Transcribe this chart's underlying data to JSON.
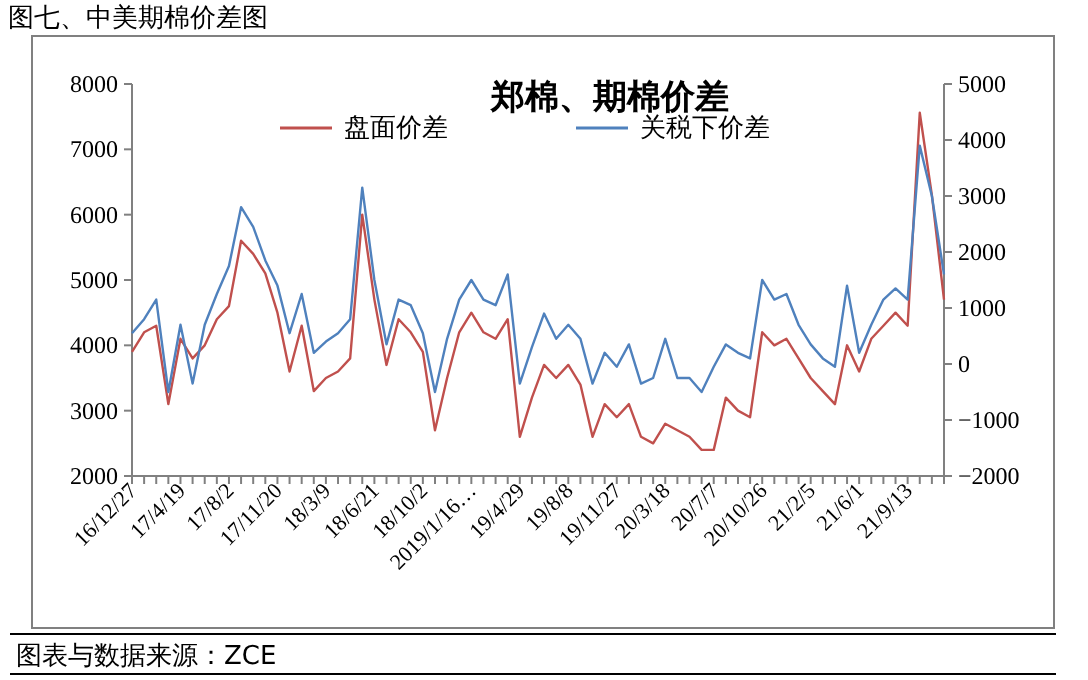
{
  "chart_data": {
    "type": "line",
    "title": "郑棉、期棉价差",
    "annotations": [
      "图七、中美期棉价差图",
      "图表与数据来源：ZCE"
    ],
    "categories": [
      "16/12/27",
      null,
      null,
      null,
      "17/4/19",
      null,
      null,
      null,
      "17/8/2",
      null,
      null,
      null,
      "17/11/20",
      null,
      null,
      null,
      "18/3/9",
      null,
      null,
      null,
      "18/6/21",
      null,
      null,
      null,
      "18/10/2",
      null,
      null,
      null,
      "2019/1/16…",
      null,
      null,
      null,
      "19/4/29",
      null,
      null,
      null,
      "19/8/8",
      null,
      null,
      null,
      "19/11/27",
      null,
      null,
      null,
      "20/3/18",
      null,
      null,
      null,
      "20/7/7",
      null,
      null,
      null,
      "20/10/26",
      null,
      null,
      null,
      "21/2/5",
      null,
      null,
      null,
      "21/6/1",
      null,
      null,
      null,
      "21/9/13",
      null,
      null,
      null
    ],
    "series": [
      {
        "name": "盘面价差",
        "color": "#c0504d",
        "values": [
          3900,
          4200,
          4300,
          3100,
          4100,
          3800,
          4000,
          4400,
          4600,
          5600,
          5400,
          5100,
          4500,
          3600,
          4300,
          3300,
          3500,
          3600,
          3800,
          6000,
          4700,
          3700,
          4400,
          4200,
          3900,
          2700,
          3500,
          4200,
          4500,
          4200,
          4100,
          4400,
          2600,
          3200,
          3700,
          3500,
          3700,
          3400,
          2600,
          3100,
          2900,
          3100,
          2600,
          2500,
          2800,
          2700,
          2600,
          2400,
          2400,
          3200,
          3000,
          2900,
          4200,
          4000,
          4100,
          3800,
          3500,
          3300,
          3100,
          4000,
          3600,
          4100,
          4300,
          4500,
          4300,
          7560,
          6300,
          4700
        ]
      },
      {
        "name": "关税下价差",
        "color": "#4f81bd",
        "axis": "y2",
        "values": [
          550,
          800,
          1150,
          -500,
          700,
          -350,
          700,
          1250,
          1750,
          2800,
          2450,
          1850,
          1400,
          550,
          1250,
          200,
          400,
          550,
          800,
          3150,
          1500,
          350,
          1150,
          1050,
          550,
          -500,
          450,
          1150,
          1500,
          1150,
          1050,
          1600,
          -350,
          300,
          900,
          450,
          700,
          450,
          -350,
          200,
          -50,
          350,
          -350,
          -250,
          450,
          -250,
          -250,
          -500,
          -50,
          350,
          200,
          100,
          1500,
          1150,
          1250,
          700,
          350,
          100,
          -50,
          1400,
          200,
          700,
          1150,
          1350,
          1150,
          3900,
          3000,
          1600
        ]
      }
    ],
    "ylim": [
      2000,
      8000
    ],
    "yticks": [
      2000,
      3000,
      4000,
      5000,
      6000,
      7000,
      8000
    ],
    "y2lim": [
      -2000,
      5000
    ],
    "y2ticks": [
      -2000,
      -1000,
      0,
      1000,
      2000,
      3000,
      4000,
      5000
    ],
    "legend": "top",
    "grid": false,
    "marker": "none",
    "line_style": "solid"
  }
}
